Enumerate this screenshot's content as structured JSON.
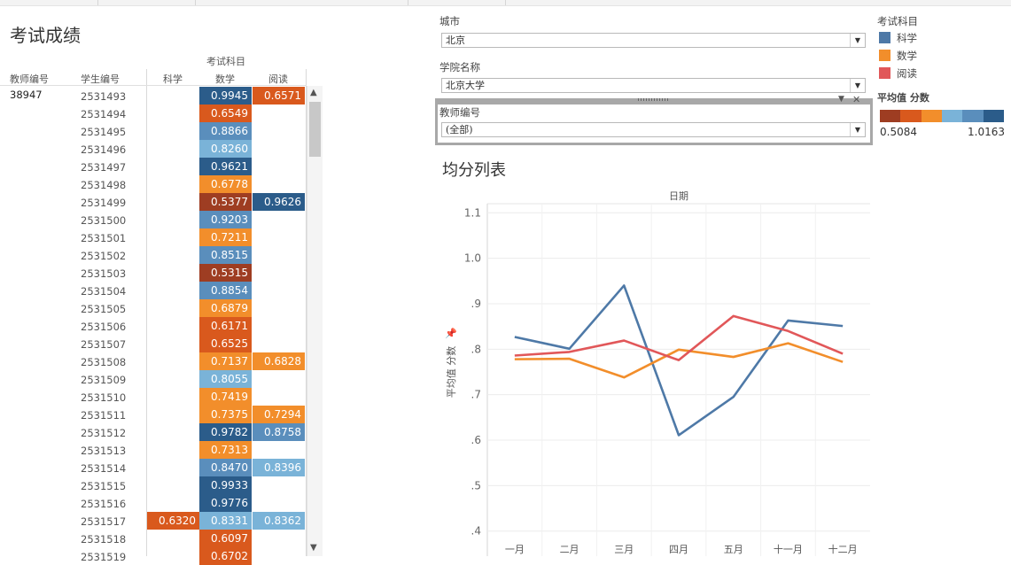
{
  "left": {
    "title": "考试成绩",
    "group_header": "考试科目",
    "columns": [
      "教师编号",
      "学生编号",
      "科学",
      "数学",
      "阅读"
    ],
    "teacher_id": "38947",
    "rows": [
      {
        "id": "2531493",
        "sci": "",
        "math": "0.9945",
        "read": "0.6571"
      },
      {
        "id": "2531494",
        "sci": "",
        "math": "0.6549",
        "read": ""
      },
      {
        "id": "2531495",
        "sci": "",
        "math": "0.8866",
        "read": ""
      },
      {
        "id": "2531496",
        "sci": "",
        "math": "0.8260",
        "read": ""
      },
      {
        "id": "2531497",
        "sci": "",
        "math": "0.9621",
        "read": ""
      },
      {
        "id": "2531498",
        "sci": "",
        "math": "0.6778",
        "read": ""
      },
      {
        "id": "2531499",
        "sci": "",
        "math": "0.5377",
        "read": "0.9626"
      },
      {
        "id": "2531500",
        "sci": "",
        "math": "0.9203",
        "read": ""
      },
      {
        "id": "2531501",
        "sci": "",
        "math": "0.7211",
        "read": ""
      },
      {
        "id": "2531502",
        "sci": "",
        "math": "0.8515",
        "read": ""
      },
      {
        "id": "2531503",
        "sci": "",
        "math": "0.5315",
        "read": ""
      },
      {
        "id": "2531504",
        "sci": "",
        "math": "0.8854",
        "read": ""
      },
      {
        "id": "2531505",
        "sci": "",
        "math": "0.6879",
        "read": ""
      },
      {
        "id": "2531506",
        "sci": "",
        "math": "0.6171",
        "read": ""
      },
      {
        "id": "2531507",
        "sci": "",
        "math": "0.6525",
        "read": ""
      },
      {
        "id": "2531508",
        "sci": "",
        "math": "0.7137",
        "read": "0.6828"
      },
      {
        "id": "2531509",
        "sci": "",
        "math": "0.8055",
        "read": ""
      },
      {
        "id": "2531510",
        "sci": "",
        "math": "0.7419",
        "read": ""
      },
      {
        "id": "2531511",
        "sci": "",
        "math": "0.7375",
        "read": "0.7294"
      },
      {
        "id": "2531512",
        "sci": "",
        "math": "0.9782",
        "read": "0.8758"
      },
      {
        "id": "2531513",
        "sci": "",
        "math": "0.7313",
        "read": ""
      },
      {
        "id": "2531514",
        "sci": "",
        "math": "0.8470",
        "read": "0.8396"
      },
      {
        "id": "2531515",
        "sci": "",
        "math": "0.9933",
        "read": ""
      },
      {
        "id": "2531516",
        "sci": "",
        "math": "0.9776",
        "read": ""
      },
      {
        "id": "2531517",
        "sci": "0.6320",
        "math": "0.8331",
        "read": "0.8362"
      },
      {
        "id": "2531518",
        "sci": "",
        "math": "0.6097",
        "read": ""
      },
      {
        "id": "2531519",
        "sci": "",
        "math": "0.6702",
        "read": ""
      }
    ]
  },
  "filters": {
    "city_label": "城市",
    "city_value": "北京",
    "college_label": "学院名称",
    "college_value": "北京大学",
    "teacher_label": "教师编号",
    "teacher_value": "(全部)"
  },
  "legend": {
    "title": "考试科目",
    "items": [
      {
        "name": "科学",
        "color": "#4e79a7"
      },
      {
        "name": "数学",
        "color": "#f28e2b"
      },
      {
        "name": "阅读",
        "color": "#e15759"
      }
    ],
    "measure_title": "平均值 分数",
    "min_label": "0.5084",
    "max_label": "1.0163",
    "gradient": [
      "#9e3d22",
      "#d9591d",
      "#f28e2b",
      "#7ab3d8",
      "#5a8ebc",
      "#2b5c8a"
    ]
  },
  "chart_data": {
    "type": "line",
    "title": "均分列表",
    "column_header": "日期",
    "ylabel": "平均值 分数",
    "ylim": [
      0.38,
      1.12
    ],
    "ytick_values": [
      0.4,
      0.5,
      0.6,
      0.7,
      0.8,
      0.9,
      1.0,
      1.1
    ],
    "ytick_labels": [
      ".4",
      ".5",
      ".6",
      ".7",
      ".8",
      ".9",
      "1.0",
      "1.1"
    ],
    "categories": [
      "一月",
      "二月",
      "三月",
      "四月",
      "五月",
      "十一月",
      "十二月"
    ],
    "series": [
      {
        "name": "科学",
        "color": "#4e79a7",
        "values": [
          0.827,
          0.801,
          0.94,
          0.611,
          0.695,
          0.863,
          0.851
        ]
      },
      {
        "name": "数学",
        "color": "#f28e2b",
        "values": [
          0.778,
          0.779,
          0.738,
          0.799,
          0.783,
          0.813,
          0.772
        ]
      },
      {
        "name": "阅读",
        "color": "#e15759",
        "values": [
          0.786,
          0.794,
          0.819,
          0.776,
          0.873,
          0.84,
          0.79
        ]
      }
    ]
  }
}
